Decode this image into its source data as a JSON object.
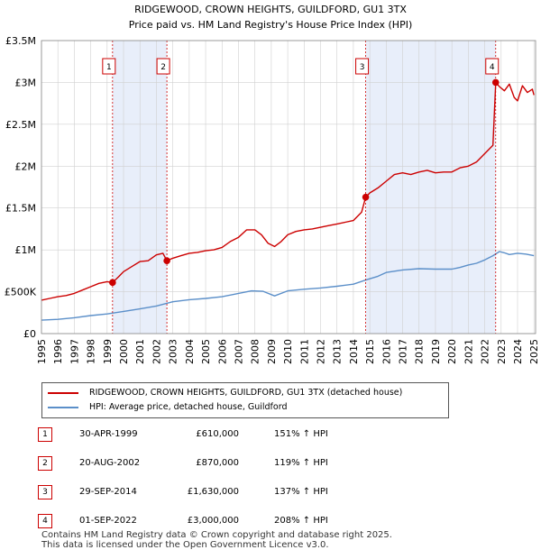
{
  "chart_data": {
    "type": "line",
    "title": "RIDGEWOOD, CROWN HEIGHTS, GUILDFORD, GU1 3TX",
    "subtitle": "Price paid vs. HM Land Registry's House Price Index (HPI)",
    "xlabel": "",
    "ylabel": "",
    "xlim": [
      1995,
      2025.1
    ],
    "ylim": [
      0,
      3500000
    ],
    "y_ticks": [
      {
        "value": 0,
        "label": "£0"
      },
      {
        "value": 500000,
        "label": "£500K"
      },
      {
        "value": 1000000,
        "label": "£1M"
      },
      {
        "value": 1500000,
        "label": "£1.5M"
      },
      {
        "value": 2000000,
        "label": "£2M"
      },
      {
        "value": 2500000,
        "label": "£2.5M"
      },
      {
        "value": 3000000,
        "label": "£3M"
      },
      {
        "value": 3500000,
        "label": "£3.5M"
      }
    ],
    "x_ticks": [
      "1995",
      "1996",
      "1997",
      "1998",
      "1999",
      "2000",
      "2001",
      "2002",
      "2003",
      "2004",
      "2005",
      "2006",
      "2007",
      "2008",
      "2009",
      "2010",
      "2011",
      "2012",
      "2013",
      "2014",
      "2015",
      "2016",
      "2017",
      "2018",
      "2019",
      "2020",
      "2021",
      "2022",
      "2023",
      "2024",
      "2025"
    ],
    "grid": true,
    "legend_position": "bottom",
    "shaded_periods": [
      [
        1999.33,
        2002.64
      ],
      [
        2014.75,
        2022.67
      ]
    ],
    "series": [
      {
        "name": "RIDGEWOOD, CROWN HEIGHTS, GUILDFORD, GU1 3TX (detached house)",
        "color": "#cc0000",
        "x": [
          1995.0,
          1995.5,
          1996.0,
          1996.5,
          1997.0,
          1997.5,
          1998.0,
          1998.5,
          1999.0,
          1999.33,
          1999.7,
          2000.0,
          2000.5,
          2001.0,
          2001.5,
          2002.0,
          2002.4,
          2002.64,
          2003.0,
          2003.5,
          2004.0,
          2004.5,
          2005.0,
          2005.5,
          2006.0,
          2006.5,
          2007.0,
          2007.5,
          2008.0,
          2008.4,
          2008.8,
          2009.2,
          2009.6,
          2010.0,
          2010.5,
          2011.0,
          2011.5,
          2012.0,
          2012.5,
          2013.0,
          2013.5,
          2014.0,
          2014.5,
          2014.75,
          2015.0,
          2015.5,
          2016.0,
          2016.5,
          2017.0,
          2017.5,
          2018.0,
          2018.5,
          2019.0,
          2019.5,
          2020.0,
          2020.5,
          2021.0,
          2021.5,
          2022.0,
          2022.5,
          2022.67,
          2022.9,
          2023.2,
          2023.5,
          2023.8,
          2024.0,
          2024.3,
          2024.6,
          2024.9,
          2025.0
        ],
        "y": [
          400000,
          420000,
          440000,
          455000,
          480000,
          520000,
          560000,
          600000,
          620000,
          610000,
          680000,
          740000,
          800000,
          860000,
          870000,
          940000,
          960000,
          870000,
          900000,
          930000,
          960000,
          970000,
          990000,
          1000000,
          1030000,
          1100000,
          1150000,
          1240000,
          1240000,
          1180000,
          1080000,
          1040000,
          1100000,
          1180000,
          1220000,
          1240000,
          1250000,
          1270000,
          1290000,
          1310000,
          1330000,
          1350000,
          1450000,
          1630000,
          1680000,
          1740000,
          1820000,
          1900000,
          1920000,
          1900000,
          1930000,
          1950000,
          1920000,
          1930000,
          1930000,
          1980000,
          2000000,
          2050000,
          2150000,
          2250000,
          3000000,
          2950000,
          2900000,
          2980000,
          2820000,
          2780000,
          2960000,
          2880000,
          2920000,
          2850000
        ]
      },
      {
        "name": "HPI: Average price, detached house, Guildford",
        "color": "#5b8fc9",
        "x": [
          1995.0,
          1996.0,
          1997.0,
          1998.0,
          1999.0,
          2000.0,
          2001.0,
          2002.0,
          2003.0,
          2004.0,
          2005.0,
          2006.0,
          2007.0,
          2007.8,
          2008.5,
          2009.2,
          2010.0,
          2011.0,
          2012.0,
          2013.0,
          2014.0,
          2014.75,
          2015.5,
          2016.0,
          2017.0,
          2018.0,
          2019.0,
          2020.0,
          2020.5,
          2021.0,
          2021.5,
          2022.0,
          2022.5,
          2022.9,
          2023.2,
          2023.5,
          2024.0,
          2024.5,
          2025.0
        ],
        "y": [
          160000,
          170000,
          190000,
          215000,
          235000,
          265000,
          295000,
          330000,
          380000,
          405000,
          420000,
          440000,
          480000,
          510000,
          505000,
          450000,
          510000,
          530000,
          545000,
          565000,
          590000,
          640000,
          685000,
          730000,
          760000,
          775000,
          770000,
          770000,
          790000,
          820000,
          840000,
          880000,
          930000,
          980000,
          965000,
          945000,
          960000,
          950000,
          930000
        ]
      }
    ],
    "sales": [
      {
        "num": "1",
        "x": 1999.33,
        "y": 610000
      },
      {
        "num": "2",
        "x": 2002.64,
        "y": 870000
      },
      {
        "num": "3",
        "x": 2014.75,
        "y": 1630000
      },
      {
        "num": "4",
        "x": 2022.67,
        "y": 3000000
      }
    ]
  },
  "legend": {
    "property": "RIDGEWOOD, CROWN HEIGHTS, GUILDFORD, GU1 3TX (detached house)",
    "hpi": "HPI: Average price, detached house, Guildford"
  },
  "sales_table": [
    {
      "num": "1",
      "date": "30-APR-1999",
      "price": "£610,000",
      "hpi": "151% ↑ HPI"
    },
    {
      "num": "2",
      "date": "20-AUG-2002",
      "price": "£870,000",
      "hpi": "119% ↑ HPI"
    },
    {
      "num": "3",
      "date": "29-SEP-2014",
      "price": "£1,630,000",
      "hpi": "137% ↑ HPI"
    },
    {
      "num": "4",
      "date": "01-SEP-2022",
      "price": "£3,000,000",
      "hpi": "208% ↑ HPI"
    }
  ],
  "footer": {
    "line1": "Contains HM Land Registry data © Crown copyright and database right 2025.",
    "line2": "This data is licensed under the Open Government Licence v3.0."
  },
  "colors": {
    "property_line": "#cc0000",
    "hpi_line": "#5b8fc9",
    "shade": "#e8eefa",
    "grid": "#d0d0d0"
  }
}
